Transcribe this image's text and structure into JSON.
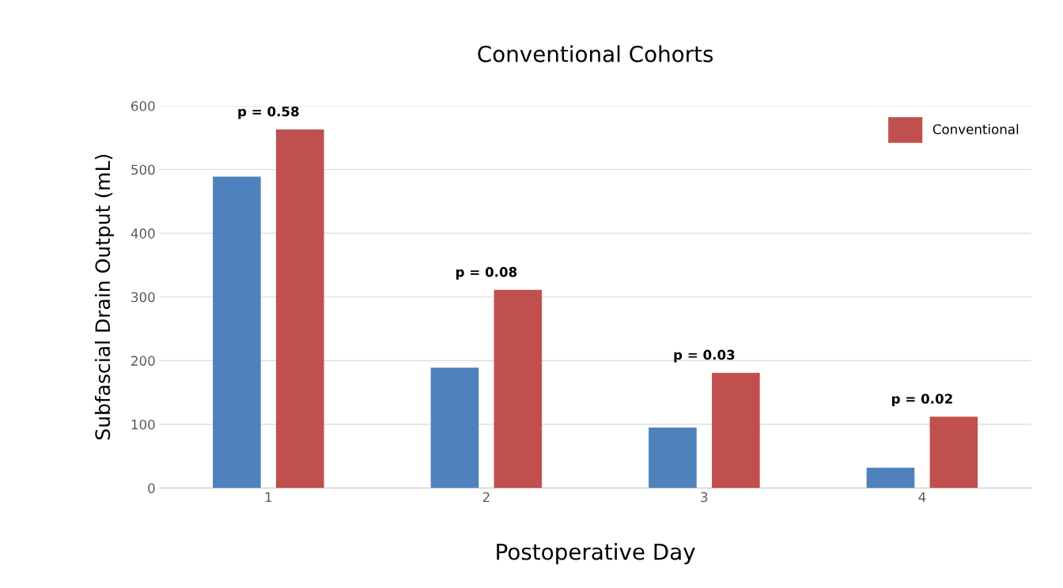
{
  "chart_data": {
    "type": "bar",
    "title": "Conventional Cohorts",
    "xlabel": "Postoperative Day",
    "ylabel": "Subfascial Drain Output (mL)",
    "categories": [
      "1",
      "2",
      "3",
      "4"
    ],
    "series": [
      {
        "color": "#4f81bd",
        "values": [
          489,
          189,
          95,
          32
        ]
      },
      {
        "name": "Conventional",
        "color": "#c0504d",
        "values": [
          563,
          311,
          181,
          112
        ]
      }
    ],
    "ylim": [
      0,
      600
    ],
    "yticks": [
      0,
      100,
      200,
      300,
      400,
      500,
      600
    ],
    "grid": "y",
    "legend": "top right",
    "annotations": [
      "p = 0.58",
      "p = 0.08",
      "p = 0.03",
      "p = 0.02"
    ]
  }
}
